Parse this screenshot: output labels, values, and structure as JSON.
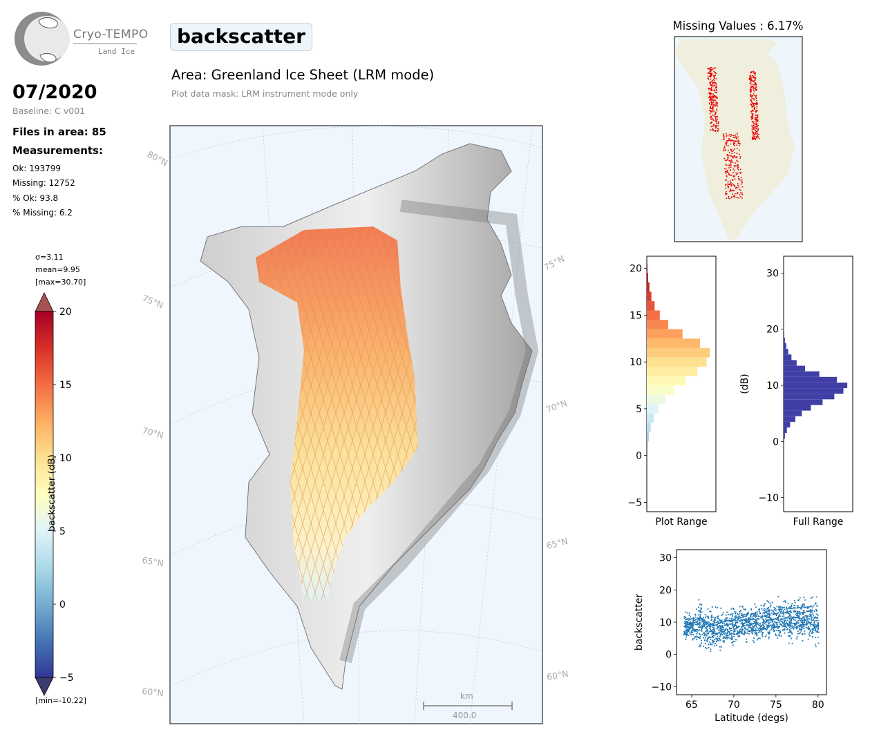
{
  "logo": {
    "name": "Cryo-TEMPO",
    "subtitle": "Land Ice"
  },
  "header": {
    "date": "07/2020",
    "baseline": "Baseline: C v001",
    "title": "backscatter",
    "area": "Area: Greenland Ice Sheet (LRM mode)",
    "mask": "Plot data mask: LRM instrument mode only"
  },
  "summary": {
    "files": "Files in area: 85",
    "measurements_heading": "Measurements:",
    "ok": "Ok: 193799",
    "missing": "Missing: 12752",
    "pct_ok": "% Ok: 93.8",
    "pct_missing": "% Missing: 6.2"
  },
  "colorbar": {
    "sigma": "σ=3.11",
    "mean": "mean=9.95",
    "max": "[max=30.70]",
    "min": "[min=-10.22]",
    "label": "backscatter (dB)",
    "ticks": [
      20,
      15,
      10,
      5,
      0,
      -5
    ],
    "range": [
      -5,
      20
    ],
    "colormap": [
      "#313695",
      "#4575b4",
      "#74add1",
      "#abd9e9",
      "#e0f3f8",
      "#ffffbf",
      "#fee090",
      "#fdae61",
      "#f46d43",
      "#d73027",
      "#a50026"
    ]
  },
  "map": {
    "lat_labels_left": [
      "80°N",
      "75°N",
      "70°N",
      "65°N",
      "60°N"
    ],
    "lat_labels_right": [
      "75°N",
      "70°N",
      "65°N",
      "60°N"
    ],
    "scalebar_unit": "km",
    "scalebar_value": "400.0"
  },
  "missing_panel": {
    "title": "Missing Values : 6.17%",
    "missing_color": "#e60000",
    "land_color": "#f0eedc",
    "ocean_color": "#eef6fc"
  },
  "chart_data": [
    {
      "type": "histogram",
      "name": "plot-range-histogram",
      "xlabel": "Plot Range",
      "ylabel": "",
      "orientation": "horizontal",
      "ylim": [
        -6,
        21.3
      ],
      "yticks": [
        -5,
        0,
        5,
        10,
        15,
        20
      ],
      "bins_center": [
        2,
        3,
        4,
        5,
        6,
        7,
        8,
        9,
        10,
        11,
        12,
        13,
        14,
        15,
        16,
        17,
        18,
        19,
        20
      ],
      "counts": [
        0.03,
        0.06,
        0.11,
        0.18,
        0.28,
        0.42,
        0.6,
        0.78,
        0.92,
        0.97,
        0.82,
        0.55,
        0.33,
        0.2,
        0.12,
        0.07,
        0.04,
        0.02,
        0.01
      ],
      "colored_by": "colorbar"
    },
    {
      "type": "histogram",
      "name": "full-range-histogram",
      "xlabel": "Full Range",
      "ylabel": "(dB)",
      "orientation": "horizontal",
      "ylim": [
        -12.5,
        33
      ],
      "yticks": [
        -10,
        0,
        10,
        20,
        30
      ],
      "bins_center": [
        1,
        2,
        3,
        4,
        5,
        6,
        7,
        8,
        9,
        10,
        11,
        12,
        13,
        14,
        15,
        16,
        17,
        18,
        19,
        20
      ],
      "counts": [
        0.02,
        0.05,
        0.1,
        0.18,
        0.28,
        0.42,
        0.6,
        0.78,
        0.92,
        0.98,
        0.82,
        0.55,
        0.33,
        0.2,
        0.12,
        0.07,
        0.04,
        0.02,
        0.01,
        0.005
      ],
      "color": "#3f3fa6"
    },
    {
      "type": "scatter",
      "name": "latitude-scatter",
      "xlabel": "Latitude (degs)",
      "ylabel": "backscatter",
      "xlim": [
        63.2,
        81
      ],
      "ylim": [
        -12.5,
        32.5
      ],
      "xticks": [
        65,
        70,
        75,
        80
      ],
      "yticks": [
        -10,
        0,
        10,
        20,
        30
      ],
      "color": "#1f77b4",
      "trend": [
        {
          "lat": 64,
          "mean": 9,
          "spread": 4
        },
        {
          "lat": 65,
          "mean": 9,
          "spread": 5
        },
        {
          "lat": 66,
          "mean": 10,
          "spread": 8
        },
        {
          "lat": 67,
          "mean": 7,
          "spread": 8
        },
        {
          "lat": 68,
          "mean": 8,
          "spread": 7
        },
        {
          "lat": 69,
          "mean": 9,
          "spread": 6
        },
        {
          "lat": 70,
          "mean": 9,
          "spread": 6
        },
        {
          "lat": 71,
          "mean": 10,
          "spread": 6
        },
        {
          "lat": 72,
          "mean": 10,
          "spread": 6
        },
        {
          "lat": 73,
          "mean": 10,
          "spread": 6
        },
        {
          "lat": 74,
          "mean": 11,
          "spread": 7
        },
        {
          "lat": 75,
          "mean": 11,
          "spread": 7
        },
        {
          "lat": 76,
          "mean": 11,
          "spread": 7
        },
        {
          "lat": 77,
          "mean": 11,
          "spread": 7
        },
        {
          "lat": 78,
          "mean": 11,
          "spread": 7
        },
        {
          "lat": 79,
          "mean": 11,
          "spread": 7
        },
        {
          "lat": 80,
          "mean": 10,
          "spread": 9
        }
      ]
    }
  ]
}
